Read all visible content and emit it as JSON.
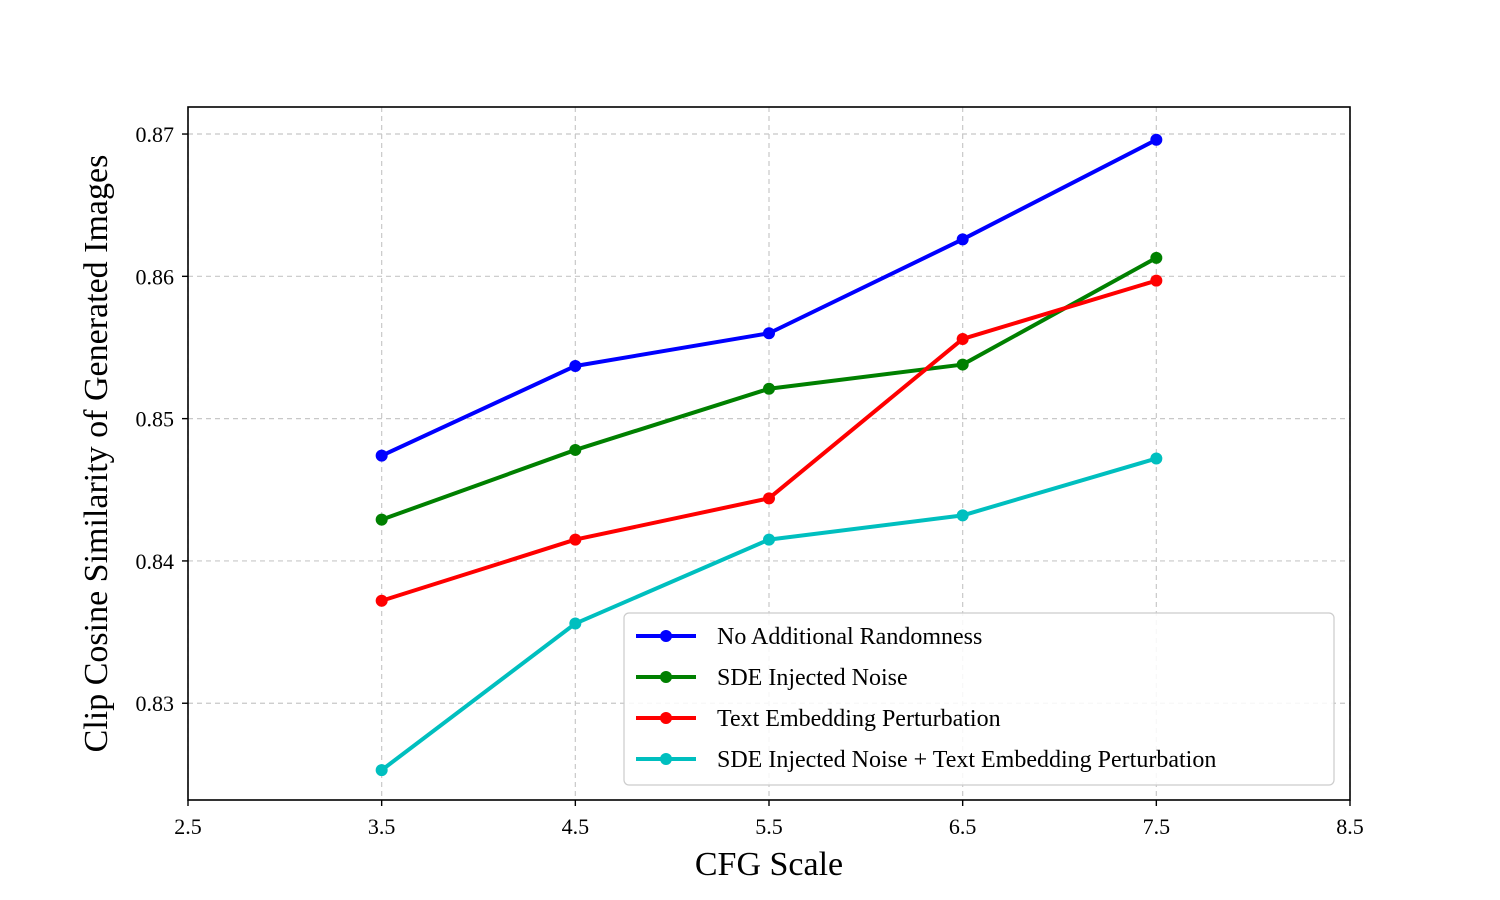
{
  "chart_data": {
    "type": "line",
    "title": "",
    "xlabel": "CFG Scale",
    "ylabel": "Clip Cosine Similarity of Generated Images",
    "xlim": [
      2.5,
      8.5
    ],
    "ylim": [
      0.8232,
      0.8719
    ],
    "xticks": [
      2.5,
      3.5,
      4.5,
      5.5,
      6.5,
      7.5,
      8.5
    ],
    "xtick_labels": [
      "2.5",
      "3.5",
      "4.5",
      "5.5",
      "6.5",
      "7.5",
      "8.5"
    ],
    "yticks": [
      0.83,
      0.84,
      0.85,
      0.86,
      0.87
    ],
    "ytick_labels": [
      "0.83",
      "0.84",
      "0.85",
      "0.86",
      "0.87"
    ],
    "grid": true,
    "legend_position": "lower-right",
    "x": [
      3.5,
      4.5,
      5.5,
      6.5,
      7.5
    ],
    "series": [
      {
        "name": "No Additional Randomness",
        "color": "#0000ff",
        "values": [
          0.8474,
          0.8537,
          0.856,
          0.8626,
          0.8696
        ]
      },
      {
        "name": "SDE Injected Noise",
        "color": "#008000",
        "values": [
          0.8429,
          0.8478,
          0.8521,
          0.8538,
          0.8613
        ]
      },
      {
        "name": "Text Embedding Perturbation",
        "color": "#ff0000",
        "values": [
          0.8372,
          0.8415,
          0.8444,
          0.8556,
          0.8597
        ]
      },
      {
        "name": "SDE Injected Noise + Text Embedding Perturbation",
        "color": "#00bfbf",
        "values": [
          0.8253,
          0.8356,
          0.8415,
          0.8432,
          0.8472
        ]
      }
    ]
  }
}
